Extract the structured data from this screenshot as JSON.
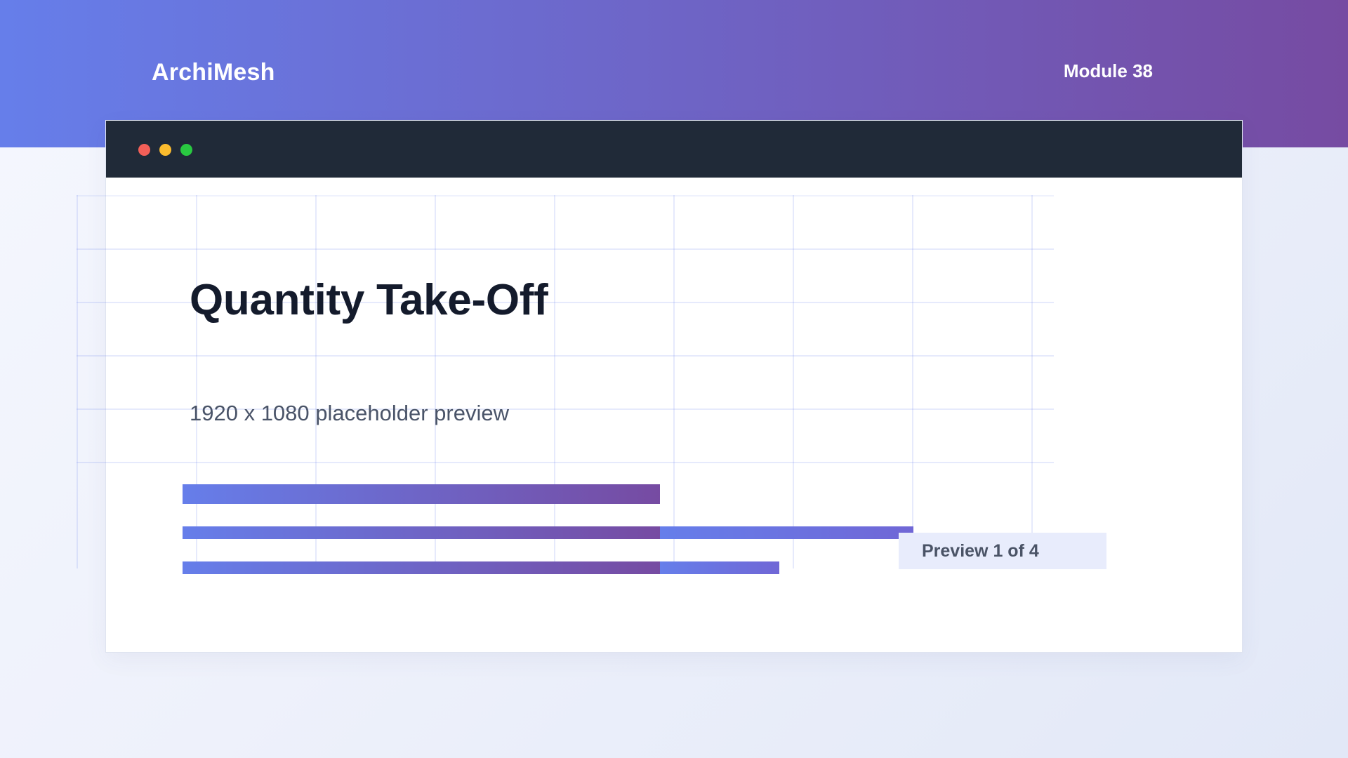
{
  "header": {
    "brand": "ArchiMesh",
    "module": "Module 38"
  },
  "window": {
    "controls": [
      "close",
      "minimize",
      "maximize"
    ]
  },
  "slide": {
    "title": "Quantity Take-Off",
    "subtitle": "1920 x 1080 placeholder preview",
    "progress_bars": [
      {
        "primary_fraction": 1.0,
        "secondary_fraction": 0.0
      },
      {
        "primary_fraction": 0.65,
        "secondary_fraction": 0.35
      },
      {
        "primary_fraction": 0.8,
        "secondary_fraction": 0.2
      }
    ],
    "preview_label": "Preview 1 of 4"
  },
  "colors": {
    "gradient_start": "#667eea",
    "gradient_end": "#764ba2",
    "titlebar": "#202a38",
    "title_text": "#141b2c"
  }
}
